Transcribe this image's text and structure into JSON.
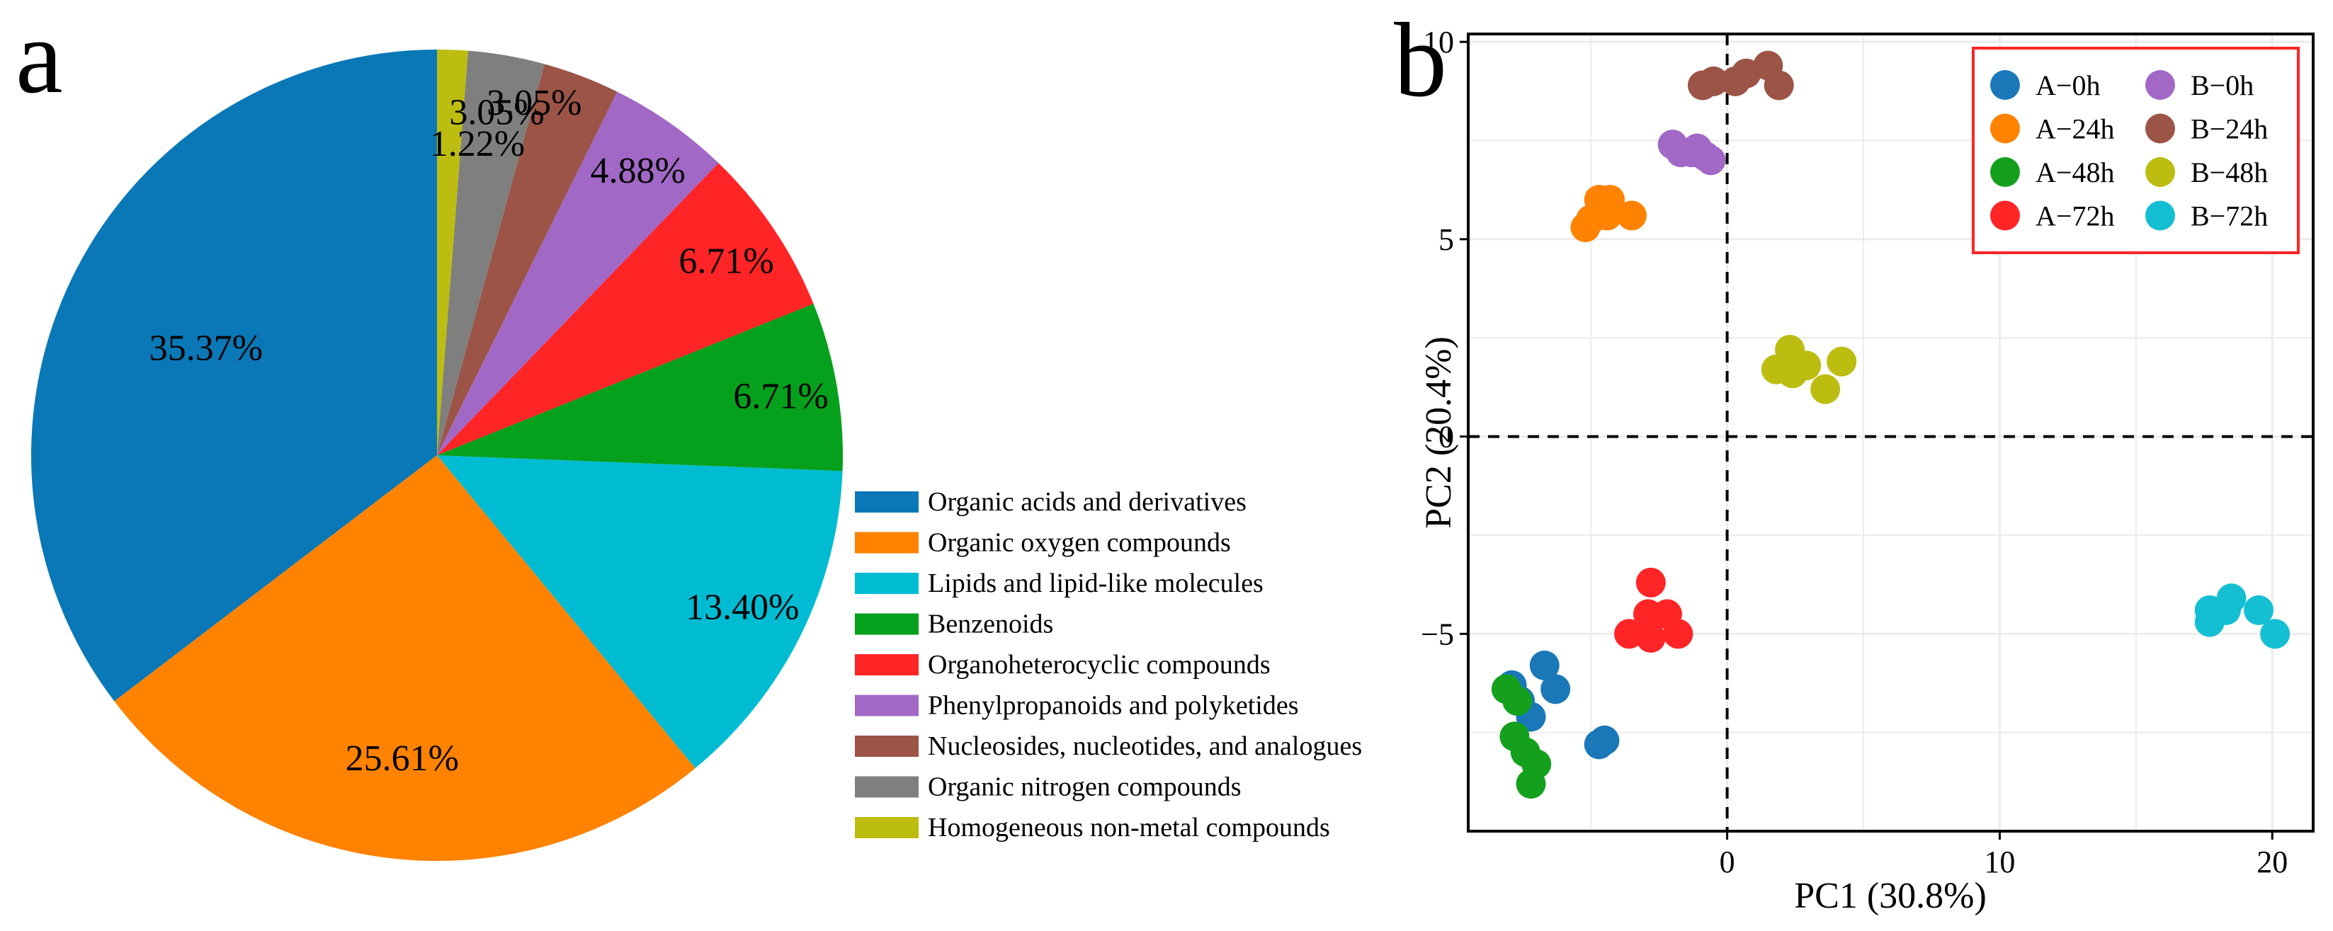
{
  "panels": {
    "a": {
      "letter": "a"
    },
    "b": {
      "letter": "b"
    }
  },
  "chart_data": [
    {
      "type": "pie",
      "panel": "a",
      "title": "",
      "start_angle_deg": 0,
      "direction": "counterclockwise",
      "slices": [
        {
          "label": "Organic acids and derivatives",
          "value": 35.37,
          "text": "35.37%",
          "color": "#0a78b6"
        },
        {
          "label": "Organic oxygen compounds",
          "value": 25.61,
          "text": "25.61%",
          "color": "#ff8200"
        },
        {
          "label": "Lipids and lipid-like molecules",
          "value": 13.4,
          "text": "13.40%",
          "color": "#00bcd2"
        },
        {
          "label": "Benzenoids",
          "value": 6.71,
          "text": "6.71%",
          "color": "#05a01c"
        },
        {
          "label": "Organoheterocyclic compounds",
          "value": 6.71,
          "text": "6.71%",
          "color": "#ff2426"
        },
        {
          "label": "Phenylpropanoids and polyketides",
          "value": 4.88,
          "text": "4.88%",
          "color": "#a168c6"
        },
        {
          "label": "Nucleosides, nucleotides, and analogues",
          "value": 3.05,
          "text": "3.05%",
          "color": "#9b5446"
        },
        {
          "label": "Organic nitrogen compounds",
          "value": 3.05,
          "text": "3.05%",
          "color": "#7f7f7f"
        },
        {
          "label": "Homogeneous non-metal compounds",
          "value": 1.22,
          "text": "1.22%",
          "color": "#bcbd10"
        }
      ],
      "legend_position": "bottom-right"
    },
    {
      "type": "scatter",
      "panel": "b",
      "title": "",
      "xlabel": "PC1 (30.8%)",
      "ylabel": "PC2 (20.4%)",
      "xlim": [
        -9.5,
        21.5
      ],
      "ylim": [
        -10,
        10.2
      ],
      "xticks": [
        0,
        10,
        20
      ],
      "yticks": [
        -5,
        0,
        5,
        10
      ],
      "xtick_labels": [
        "0",
        "10",
        "20"
      ],
      "ytick_labels": [
        "−5",
        "0",
        "5",
        "10"
      ],
      "grid": true,
      "reference_lines": {
        "x": 0,
        "y": 0,
        "style": "dashed"
      },
      "legend_position": "top-right",
      "series": [
        {
          "name": "A−0h",
          "color": "#1a78b8",
          "points": [
            [
              -7.9,
              -6.3
            ],
            [
              -7.6,
              -6.7
            ],
            [
              -7.2,
              -7.1
            ],
            [
              -6.7,
              -5.8
            ],
            [
              -6.3,
              -6.4
            ],
            [
              -4.7,
              -7.8
            ],
            [
              -4.5,
              -7.7
            ]
          ]
        },
        {
          "name": "A−24h",
          "color": "#ff8200",
          "points": [
            [
              -5.0,
              5.5
            ],
            [
              -4.7,
              6.0
            ],
            [
              -4.3,
              6.0
            ],
            [
              -4.4,
              5.6
            ],
            [
              -3.5,
              5.6
            ],
            [
              -5.2,
              5.3
            ]
          ]
        },
        {
          "name": "A−48h",
          "color": "#14a01c",
          "points": [
            [
              -8.1,
              -6.4
            ],
            [
              -7.7,
              -6.7
            ],
            [
              -7.8,
              -7.6
            ],
            [
              -7.4,
              -8.0
            ],
            [
              -7.0,
              -8.3
            ],
            [
              -7.2,
              -8.8
            ]
          ]
        },
        {
          "name": "A−72h",
          "color": "#ff2426",
          "points": [
            [
              -2.8,
              -3.7
            ],
            [
              -2.9,
              -4.5
            ],
            [
              -2.2,
              -4.5
            ],
            [
              -3.6,
              -5.0
            ],
            [
              -2.8,
              -5.1
            ],
            [
              -1.8,
              -5.0
            ]
          ]
        },
        {
          "name": "B−0h",
          "color": "#a168c6",
          "points": [
            [
              -2.0,
              7.4
            ],
            [
              -1.7,
              7.2
            ],
            [
              -1.3,
              7.2
            ],
            [
              -1.1,
              7.3
            ],
            [
              -0.8,
              7.1
            ],
            [
              -0.6,
              7.0
            ]
          ]
        },
        {
          "name": "B−24h",
          "color": "#9b5446",
          "points": [
            [
              -0.9,
              8.9
            ],
            [
              -0.5,
              9.0
            ],
            [
              0.3,
              9.0
            ],
            [
              0.7,
              9.2
            ],
            [
              1.5,
              9.4
            ],
            [
              1.9,
              8.9
            ]
          ]
        },
        {
          "name": "B−48h",
          "color": "#bcbd10",
          "points": [
            [
              1.8,
              1.7
            ],
            [
              2.3,
              2.2
            ],
            [
              2.4,
              1.6
            ],
            [
              2.9,
              1.8
            ],
            [
              3.6,
              1.2
            ],
            [
              4.2,
              1.9
            ]
          ]
        },
        {
          "name": "B−72h",
          "color": "#14bfd3",
          "points": [
            [
              17.7,
              -4.4
            ],
            [
              17.7,
              -4.7
            ],
            [
              18.3,
              -4.4
            ],
            [
              18.5,
              -4.1
            ],
            [
              19.5,
              -4.4
            ],
            [
              20.1,
              -5.0
            ]
          ]
        }
      ]
    }
  ]
}
